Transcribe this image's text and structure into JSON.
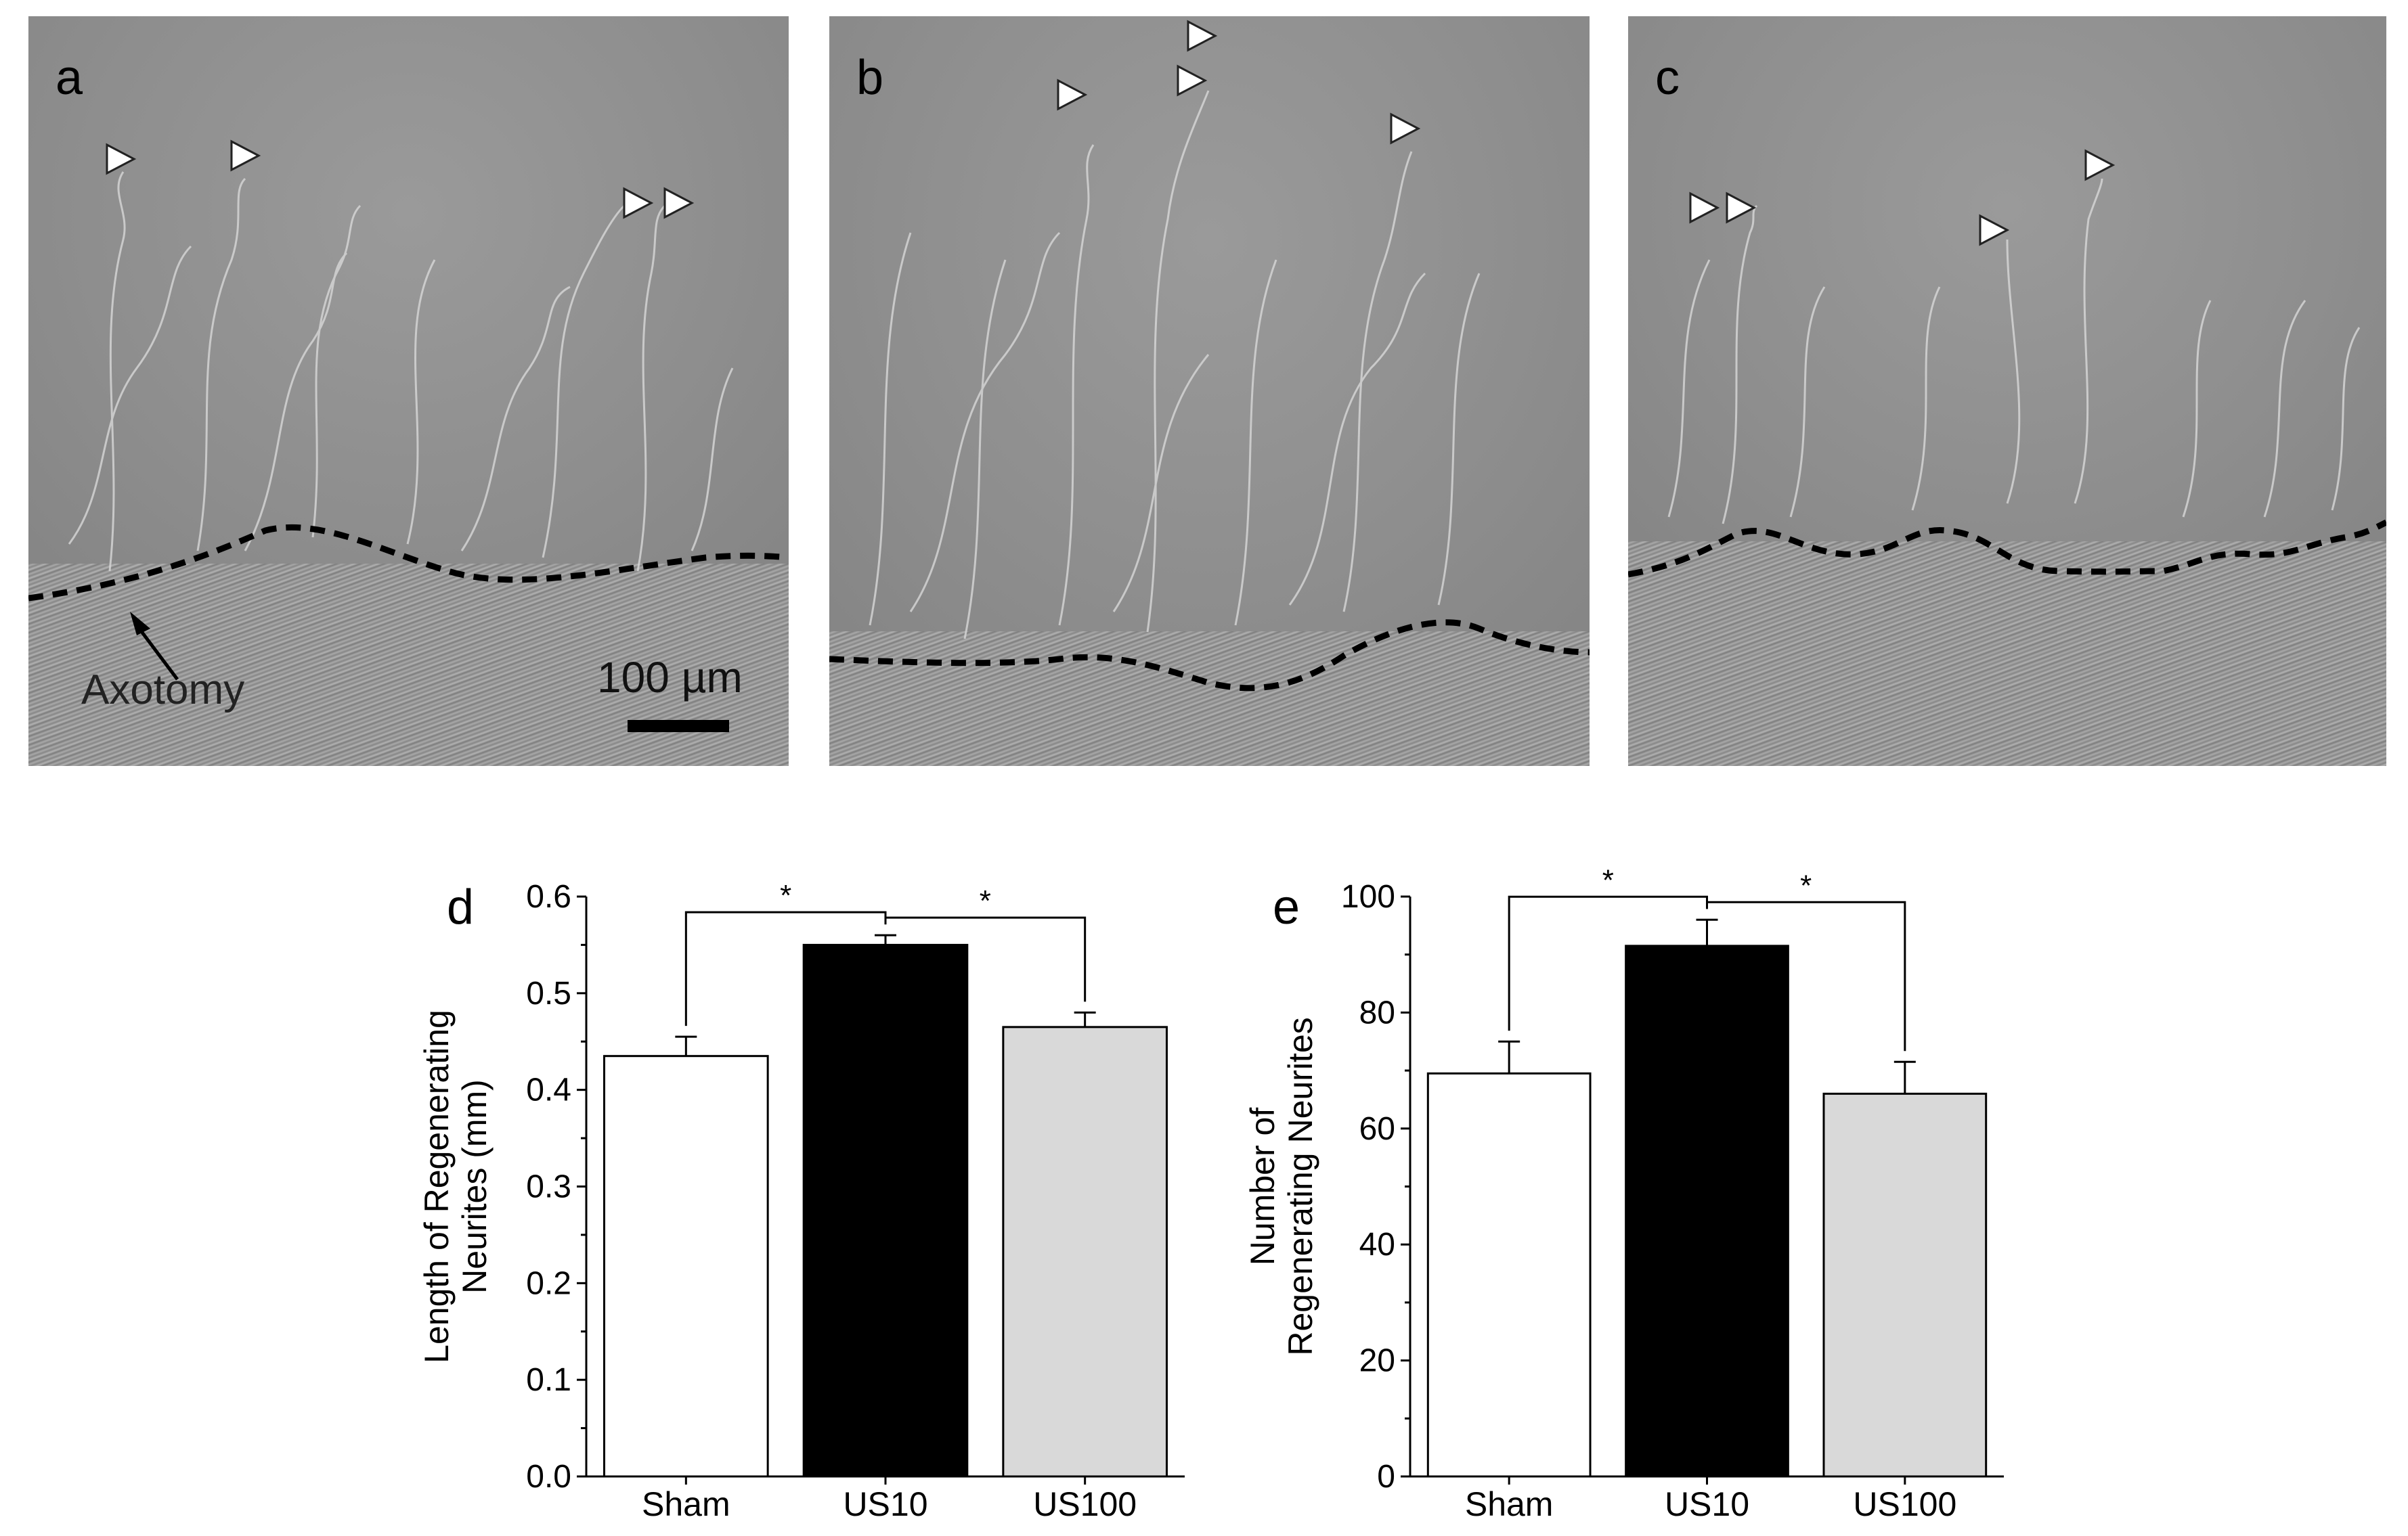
{
  "panels": [
    {
      "letter": "a"
    },
    {
      "letter": "b"
    },
    {
      "letter": "c"
    }
  ],
  "annotations": {
    "axotomy": "Axotomy",
    "scale_bar": "100 µm"
  },
  "colors": {
    "sham": "#ffffff",
    "us10": "#000000",
    "us100": "#d9d9d9",
    "dashed_line": "#000000"
  },
  "chart_data": [
    {
      "panel": "d",
      "type": "bar",
      "categories": [
        "Sham",
        "US10",
        "US100"
      ],
      "values": [
        0.435,
        0.55,
        0.465
      ],
      "errors": [
        0.02,
        0.01,
        0.015
      ],
      "ylabel": "Length of Regenerating Neurites (mm)",
      "ylim": [
        0,
        0.6
      ],
      "yticks": [
        "0.0",
        "0.1",
        "0.2",
        "0.3",
        "0.4",
        "0.5",
        "0.6"
      ],
      "ytick_values": [
        0,
        0.1,
        0.2,
        0.3,
        0.4,
        0.5,
        0.6
      ],
      "significance": [
        {
          "from": 0,
          "to": 1,
          "label": "*"
        },
        {
          "from": 1,
          "to": 2,
          "label": "*"
        }
      ]
    },
    {
      "panel": "e",
      "type": "bar",
      "categories": [
        "Sham",
        "US10",
        "US100"
      ],
      "values": [
        69.5,
        91.5,
        66
      ],
      "errors": [
        5.5,
        4.5,
        5.5
      ],
      "ylabel": "Number of Regenerating Neurites",
      "ylim": [
        0,
        100
      ],
      "yticks": [
        "0",
        "20",
        "40",
        "60",
        "80",
        "100"
      ],
      "ytick_values": [
        0,
        20,
        40,
        60,
        80,
        100
      ],
      "significance": [
        {
          "from": 0,
          "to": 1,
          "label": "*"
        },
        {
          "from": 1,
          "to": 2,
          "label": "*"
        }
      ]
    }
  ]
}
